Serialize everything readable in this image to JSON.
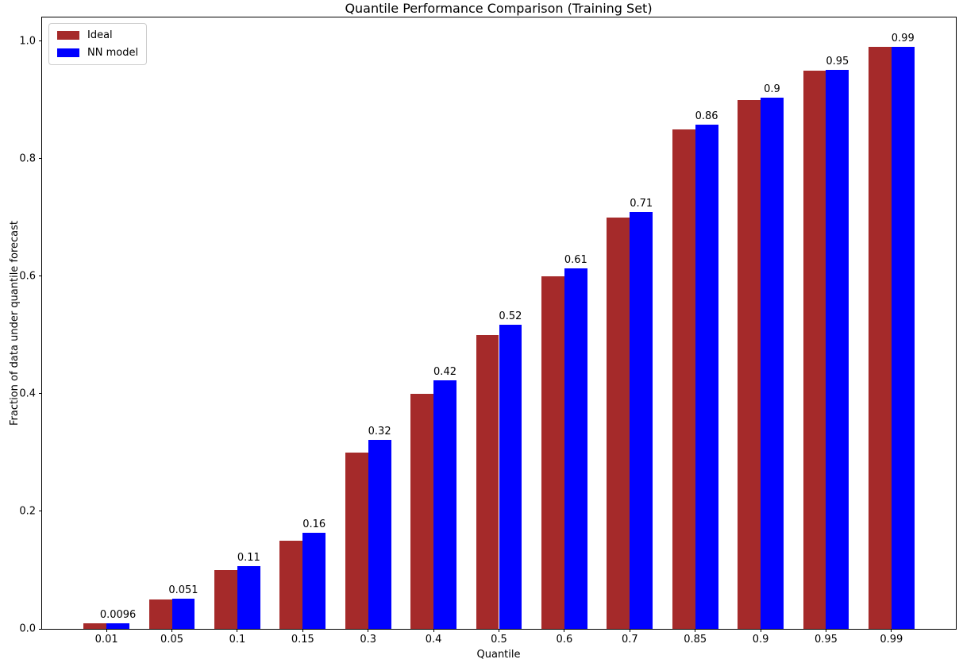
{
  "chart_data": {
    "type": "bar",
    "title": "Quantile Performance Comparison (Training Set)",
    "xlabel": "Quantile",
    "ylabel": "Fraction of data under quantile forecast",
    "categories": [
      "0.01",
      "0.05",
      "0.1",
      "0.15",
      "0.3",
      "0.4",
      "0.5",
      "0.6",
      "0.7",
      "0.85",
      "0.9",
      "0.95",
      "0.99"
    ],
    "series": [
      {
        "name": "Ideal",
        "color": "#A52A2A",
        "values": [
          0.01,
          0.05,
          0.1,
          0.15,
          0.3,
          0.4,
          0.5,
          0.6,
          0.7,
          0.85,
          0.9,
          0.95,
          0.99
        ]
      },
      {
        "name": "NN model",
        "color": "#0000FF",
        "values": [
          0.0096,
          0.051,
          0.107,
          0.163,
          0.322,
          0.423,
          0.517,
          0.613,
          0.709,
          0.858,
          0.903,
          0.951,
          0.99
        ],
        "bar_labels": [
          "0.0096",
          "0.051",
          "0.11",
          "0.16",
          "0.32",
          "0.42",
          "0.52",
          "0.61",
          "0.71",
          "0.86",
          "0.9",
          "0.95",
          "0.99"
        ]
      }
    ],
    "ylim": [
      0,
      1.04
    ],
    "yticks": [
      0.0,
      0.2,
      0.4,
      0.6,
      0.8,
      1.0
    ],
    "ytick_labels": [
      "0.0",
      "0.2",
      "0.4",
      "0.6",
      "0.8",
      "1.0"
    ],
    "xlim": [
      -0.985,
      12.985
    ],
    "bar_width": 0.35,
    "grid": false,
    "legend_position": "upper left",
    "label_color": "#000000"
  }
}
